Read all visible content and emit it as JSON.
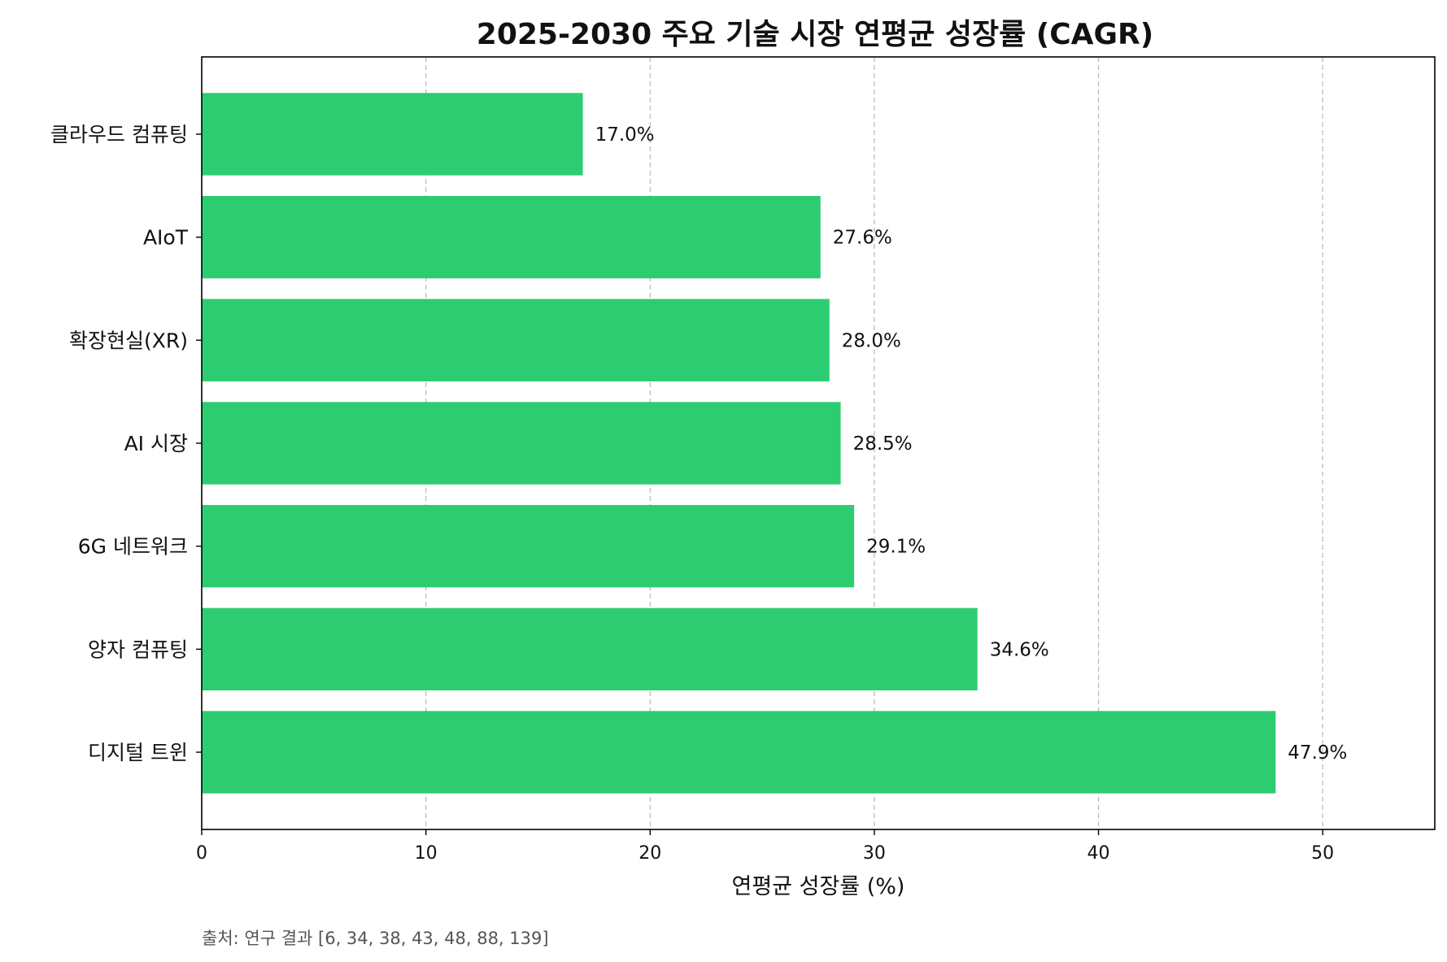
{
  "chart_data": {
    "type": "bar",
    "orientation": "horizontal",
    "title": "2025-2030 주요 기술 시장 연평균 성장률 (CAGR)",
    "xlabel": "연평균 성장률 (%)",
    "ylabel": "",
    "categories": [
      "클라우드 컴퓨팅",
      "AIoT",
      "확장현실(XR)",
      "AI 시장",
      "6G 네트워크",
      "양자 컴퓨팅",
      "디지털 트윈"
    ],
    "values": [
      17.0,
      27.6,
      28.0,
      28.5,
      29.1,
      34.6,
      47.9
    ],
    "value_labels": [
      "17.0%",
      "27.6%",
      "28.0%",
      "28.5%",
      "29.1%",
      "34.6%",
      "47.9%"
    ],
    "xlim": [
      0,
      55
    ],
    "xticks": [
      0,
      10,
      20,
      30,
      40,
      50
    ],
    "xtick_labels": [
      "0",
      "10",
      "20",
      "30",
      "40",
      "50"
    ],
    "grid": "x-axis dashed",
    "bar_color": "#2ecc71",
    "source_note": "출처: 연구 결과 [6, 34, 38, 43, 48, 88, 139]"
  }
}
